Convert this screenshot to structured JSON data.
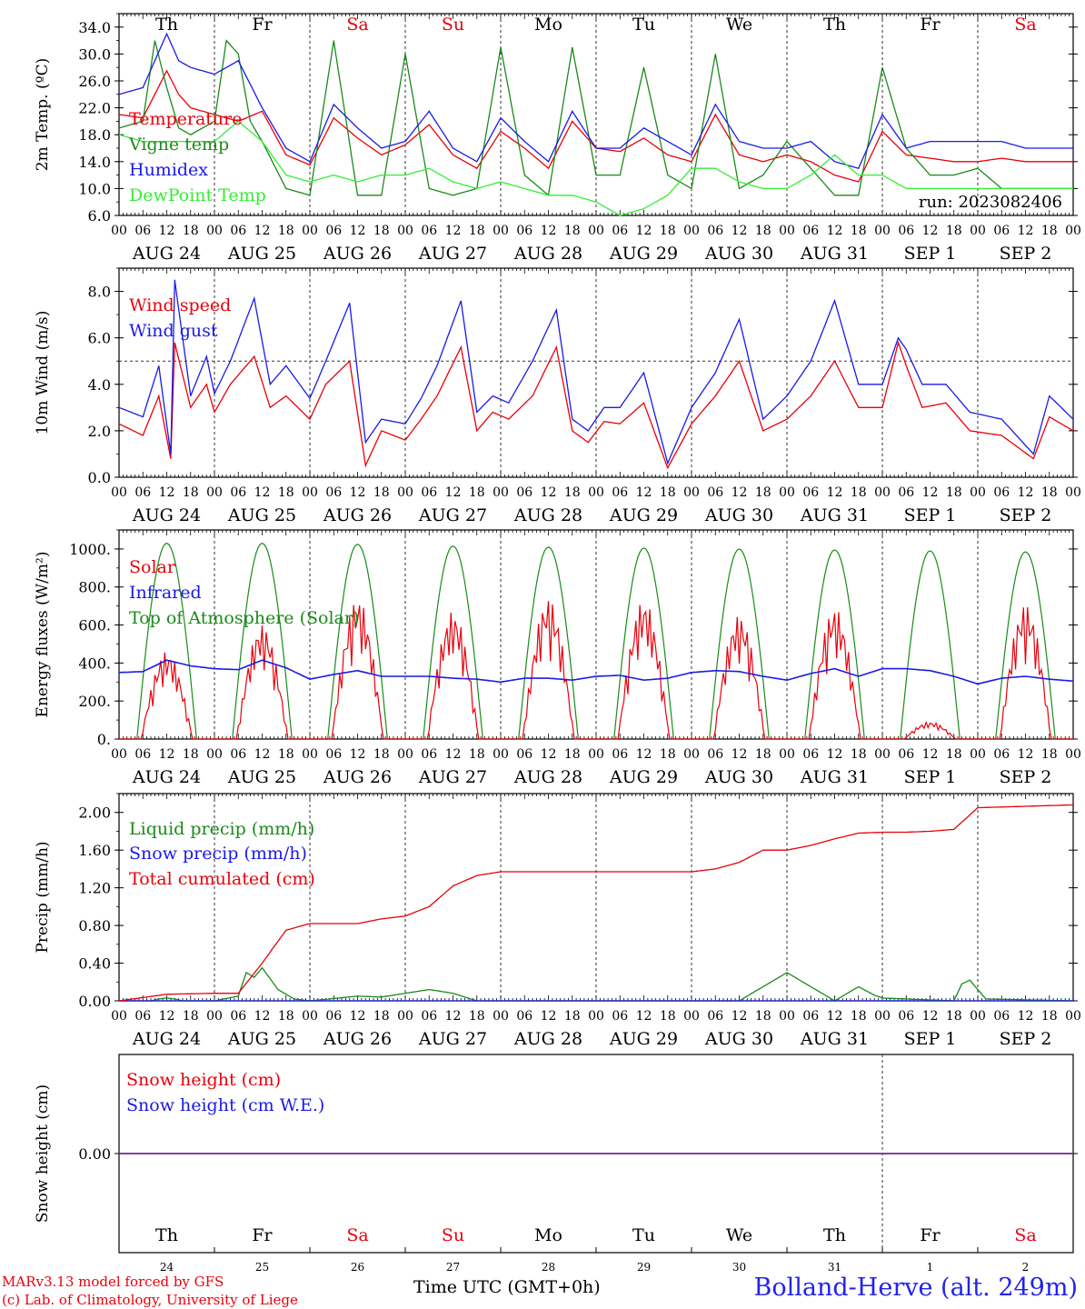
{
  "colors": {
    "red": "#e8000b",
    "green": "#1a8a1a",
    "blue": "#1a1ae6",
    "lightgreen": "#33ee33",
    "purple": "#8040a0",
    "axis": "#000000"
  },
  "days": [
    {
      "dow": "Th",
      "date": "AUG 24",
      "num": "24",
      "weekend": false
    },
    {
      "dow": "Fr",
      "date": "AUG 25",
      "num": "25",
      "weekend": false
    },
    {
      "dow": "Sa",
      "date": "AUG 26",
      "num": "26",
      "weekend": true
    },
    {
      "dow": "Su",
      "date": "AUG 27",
      "num": "27",
      "weekend": true
    },
    {
      "dow": "Mo",
      "date": "AUG 28",
      "num": "28",
      "weekend": false
    },
    {
      "dow": "Tu",
      "date": "AUG 29",
      "num": "29",
      "weekend": false
    },
    {
      "dow": "We",
      "date": "AUG 30",
      "num": "30",
      "weekend": false
    },
    {
      "dow": "Th",
      "date": "AUG 31",
      "num": "31",
      "weekend": false
    },
    {
      "dow": "Fr",
      "date": "SEP  1",
      "num": "1",
      "weekend": false
    },
    {
      "dow": "Sa",
      "date": "SEP  2",
      "num": "2",
      "weekend": true
    }
  ],
  "hour_labels": [
    "00",
    "06",
    "12",
    "18"
  ],
  "end_hour_label": "00",
  "footer": {
    "credit_line1": "MARv3.13 model forced by GFS",
    "credit_line2": "(c) Lab. of Climatology, University of Liege",
    "time_axis": "Time UTC (GMT+0h)",
    "station": "Bolland-Herve (alt. 249m)"
  },
  "chart_data": [
    {
      "type": "line",
      "ylabel": "2m Temp. (ºC)",
      "ylim": [
        6,
        36
      ],
      "yticks": [
        6,
        10,
        14,
        18,
        22,
        26,
        30,
        34
      ],
      "ytick_labels": [
        "6.0",
        "10.0",
        "14.0",
        "18.0",
        "22.0",
        "26.0",
        "30.0",
        "34.0"
      ],
      "annotation": "run: 2023082406",
      "show_day_names": true,
      "x_unit": "hours since 2023-08-24 00 UTC",
      "series": [
        {
          "name": "Temperature",
          "color": "red",
          "x": [
            0,
            6,
            12,
            15,
            18,
            24,
            30,
            36,
            42,
            48,
            54,
            60,
            66,
            72,
            78,
            84,
            90,
            96,
            102,
            108,
            114,
            120,
            126,
            132,
            138,
            144,
            150,
            156,
            162,
            168,
            174,
            180,
            186,
            192,
            198,
            204,
            210,
            216,
            222,
            228,
            234,
            240
          ],
          "y": [
            21,
            20.5,
            27.5,
            24,
            22,
            21,
            20,
            21.5,
            15,
            13.5,
            20.5,
            17.5,
            15,
            16.5,
            19.5,
            15,
            13,
            18.5,
            16,
            13,
            20,
            16,
            15.5,
            17.5,
            15,
            14,
            21,
            15,
            14,
            15,
            14,
            12,
            11,
            18.5,
            15,
            14.5,
            14,
            14,
            14.5,
            14,
            14,
            14
          ]
        },
        {
          "name": "Vigne temp",
          "color": "green",
          "x": [
            0,
            6,
            9,
            12,
            15,
            18,
            24,
            27,
            30,
            33,
            36,
            42,
            48,
            54,
            60,
            66,
            72,
            78,
            84,
            90,
            96,
            102,
            108,
            114,
            120,
            126,
            132,
            138,
            144,
            150,
            156,
            162,
            168,
            174,
            180,
            186,
            192,
            198,
            204,
            210,
            216,
            222,
            228,
            234,
            240
          ],
          "y": [
            19,
            20,
            32,
            25,
            19,
            18,
            20,
            32,
            30,
            20,
            17,
            10,
            9,
            32,
            9,
            9,
            30,
            10,
            9,
            10,
            31,
            12,
            9,
            31,
            12,
            12,
            28,
            12,
            10,
            30,
            10,
            12,
            17,
            13,
            9,
            9,
            28,
            16,
            12,
            12,
            13,
            10,
            10,
            10,
            10
          ]
        },
        {
          "name": "Humidex",
          "color": "blue",
          "x": [
            0,
            6,
            12,
            15,
            18,
            24,
            30,
            36,
            42,
            48,
            54,
            60,
            66,
            72,
            78,
            84,
            90,
            96,
            102,
            108,
            114,
            120,
            126,
            132,
            138,
            144,
            150,
            156,
            162,
            168,
            174,
            180,
            186,
            192,
            198,
            204,
            210,
            216,
            222,
            228,
            234,
            240
          ],
          "y": [
            24,
            25,
            33,
            29,
            28,
            27,
            29,
            22,
            16,
            14,
            22.5,
            19,
            16,
            17,
            21.5,
            16,
            14,
            20.5,
            17,
            14,
            21.5,
            16,
            16,
            19,
            17,
            15,
            22.5,
            17,
            16,
            16,
            17,
            14,
            13,
            21,
            16,
            17,
            17,
            17,
            17,
            16,
            16,
            16
          ]
        },
        {
          "name": "DewPoint Temp",
          "color": "lightgreen",
          "x": [
            0,
            6,
            12,
            18,
            24,
            30,
            36,
            42,
            48,
            54,
            60,
            66,
            72,
            78,
            84,
            90,
            96,
            102,
            108,
            114,
            120,
            126,
            132,
            138,
            144,
            150,
            156,
            162,
            168,
            174,
            180,
            186,
            192,
            198,
            204,
            210,
            216,
            222,
            228,
            234,
            240
          ],
          "y": [
            18,
            17,
            17,
            17,
            17,
            20,
            17,
            12,
            11,
            12,
            11,
            12,
            12,
            13,
            11,
            10,
            11,
            10,
            9,
            9,
            8,
            6,
            7,
            9,
            13,
            13,
            11,
            10,
            10,
            12,
            15,
            12,
            12,
            10,
            10,
            10,
            10,
            10,
            10,
            10,
            10
          ]
        }
      ]
    },
    {
      "type": "line",
      "ylabel": "10m Wind (m/s)",
      "ylim": [
        0,
        9
      ],
      "yticks": [
        0,
        2,
        4,
        6,
        8
      ],
      "ytick_labels": [
        "0.0",
        "2.0",
        "4.0",
        "6.0",
        "8.0"
      ],
      "reference_line": 5,
      "x_unit": "hours since 2023-08-24 00 UTC",
      "series": [
        {
          "name": "Wind speed",
          "color": "red",
          "x": [
            0,
            6,
            10,
            13,
            14,
            18,
            22,
            24,
            28,
            34,
            38,
            42,
            48,
            52,
            58,
            62,
            66,
            72,
            76,
            80,
            86,
            90,
            94,
            98,
            104,
            110,
            114,
            118,
            122,
            126,
            132,
            138,
            144,
            150,
            156,
            162,
            168,
            174,
            180,
            186,
            192,
            196,
            198,
            202,
            208,
            214,
            222,
            230,
            234,
            240
          ],
          "y": [
            2.3,
            1.8,
            3.5,
            0.8,
            5.8,
            3,
            4,
            2.8,
            4,
            5.2,
            3,
            3.5,
            2.5,
            4,
            5,
            0.5,
            2,
            1.6,
            2.5,
            3.5,
            5.6,
            2,
            2.8,
            2.5,
            3.5,
            5.6,
            2,
            1.5,
            2.4,
            2.3,
            3.2,
            0.4,
            2.3,
            3.5,
            5,
            2,
            2.5,
            3.5,
            5,
            3,
            3,
            5.8,
            4.8,
            3,
            3.2,
            2,
            1.8,
            0.8,
            2.6,
            2
          ]
        },
        {
          "name": "Wind gust",
          "color": "blue",
          "x": [
            0,
            6,
            10,
            13,
            14,
            18,
            22,
            24,
            28,
            34,
            38,
            42,
            48,
            52,
            58,
            62,
            66,
            72,
            76,
            80,
            86,
            90,
            94,
            98,
            104,
            110,
            114,
            118,
            122,
            126,
            132,
            138,
            144,
            150,
            156,
            162,
            168,
            174,
            180,
            186,
            192,
            196,
            198,
            202,
            208,
            214,
            222,
            230,
            234,
            240
          ],
          "y": [
            3,
            2.6,
            4.8,
            1,
            8.5,
            3.5,
            5.2,
            3.6,
            5,
            7.7,
            4,
            4.8,
            3.4,
            5,
            7.5,
            1.5,
            2.5,
            2.3,
            3.4,
            4.8,
            7.6,
            2.8,
            3.5,
            3.2,
            5,
            7.2,
            2.5,
            2,
            3,
            3,
            4.5,
            0.6,
            3,
            4.5,
            6.8,
            2.5,
            3.5,
            5,
            7.6,
            4,
            4,
            6,
            5.5,
            4,
            4,
            2.8,
            2.5,
            1,
            3.5,
            2.5
          ]
        }
      ]
    },
    {
      "type": "line",
      "ylabel": "Energy fluxes (W/m²)",
      "ylim": [
        0,
        1100
      ],
      "yticks": [
        0,
        200,
        400,
        600,
        800,
        1000
      ],
      "ytick_labels": [
        "0.",
        "200.",
        "400.",
        "600.",
        "800.",
        "1000."
      ],
      "x_unit": "hours since 2023-08-24 00 UTC",
      "daily_peaks": {
        "Top of Atmosphere (Solar)": [
          1030,
          1030,
          1025,
          1015,
          1010,
          1005,
          1000,
          995,
          990,
          985
        ],
        "Solar": [
          460,
          600,
          740,
          670,
          740,
          730,
          650,
          690,
          90,
          710
        ]
      },
      "series": [
        {
          "name": "Solar",
          "color": "red"
        },
        {
          "name": "Infrared",
          "color": "blue",
          "x": [
            0,
            6,
            12,
            18,
            24,
            30,
            36,
            42,
            48,
            54,
            60,
            66,
            72,
            78,
            84,
            90,
            96,
            102,
            108,
            114,
            120,
            126,
            132,
            138,
            144,
            150,
            156,
            162,
            168,
            174,
            180,
            186,
            192,
            198,
            204,
            210,
            216,
            222,
            228,
            234,
            240
          ],
          "y": [
            350,
            355,
            415,
            385,
            370,
            365,
            415,
            375,
            315,
            340,
            360,
            330,
            330,
            330,
            320,
            315,
            300,
            320,
            320,
            310,
            330,
            335,
            310,
            320,
            350,
            360,
            355,
            330,
            310,
            345,
            370,
            330,
            370,
            370,
            360,
            330,
            290,
            320,
            330,
            315,
            305
          ]
        },
        {
          "name": "Top of Atmosphere (Solar)",
          "color": "green"
        }
      ]
    },
    {
      "type": "line",
      "ylabel": "Precip (mm/h)",
      "ylim": [
        0,
        2.2
      ],
      "yticks": [
        0,
        0.4,
        0.8,
        1.2,
        1.6,
        2.0
      ],
      "ytick_labels": [
        "0.00",
        "0.40",
        "0.80",
        "1.20",
        "1.60",
        "2.00"
      ],
      "x_unit": "hours since 2023-08-24 00 UTC",
      "series": [
        {
          "name": "Liquid precip (mm/h)",
          "color": "green",
          "x": [
            0,
            8,
            10,
            12,
            14,
            16,
            24,
            30,
            32,
            34,
            36,
            40,
            44,
            48,
            60,
            66,
            72,
            78,
            84,
            90,
            96,
            150,
            156,
            160,
            162,
            164,
            168,
            180,
            186,
            190,
            192,
            210,
            212,
            214,
            216,
            218,
            240
          ],
          "y": [
            0,
            0,
            0.02,
            0.03,
            0.02,
            0,
            0,
            0.05,
            0.3,
            0.25,
            0.35,
            0.12,
            0.02,
            0,
            0.05,
            0.04,
            0.08,
            0.12,
            0.08,
            0,
            0,
            0,
            0,
            0.1,
            0.15,
            0.2,
            0.3,
            0,
            0.15,
            0.06,
            0.03,
            0,
            0.18,
            0.22,
            0.12,
            0.02,
            0
          ]
        },
        {
          "name": "Snow precip (mm/h)",
          "color": "blue",
          "x": [
            0,
            240
          ],
          "y": [
            0,
            0
          ]
        },
        {
          "name": "Total cumulated (cm)",
          "color": "red",
          "x": [
            0,
            12,
            24,
            30,
            36,
            42,
            48,
            54,
            60,
            66,
            72,
            78,
            84,
            90,
            96,
            102,
            120,
            144,
            150,
            156,
            162,
            168,
            174,
            180,
            186,
            192,
            198,
            204,
            210,
            216,
            240
          ],
          "y": [
            0,
            0.07,
            0.08,
            0.08,
            0.4,
            0.75,
            0.82,
            0.82,
            0.82,
            0.87,
            0.9,
            1.0,
            1.22,
            1.33,
            1.37,
            1.37,
            1.37,
            1.37,
            1.4,
            1.47,
            1.6,
            1.6,
            1.65,
            1.72,
            1.78,
            1.79,
            1.79,
            1.8,
            1.82,
            2.05,
            2.08
          ]
        }
      ]
    },
    {
      "type": "line",
      "ylabel": "Snow height (cm)",
      "ylim": [
        -1,
        1
      ],
      "yticks": [
        0
      ],
      "ytick_labels": [
        "0.00"
      ],
      "x_unit": "hours since 2023-08-24 00 UTC",
      "series": [
        {
          "name": "Snow height (cm)",
          "color": "red",
          "x": [
            0,
            240
          ],
          "y": [
            0,
            0
          ]
        },
        {
          "name": "Snow height (cm W.E.)",
          "color": "blue",
          "x": [
            0,
            240
          ],
          "y": [
            0,
            0
          ]
        }
      ]
    }
  ]
}
